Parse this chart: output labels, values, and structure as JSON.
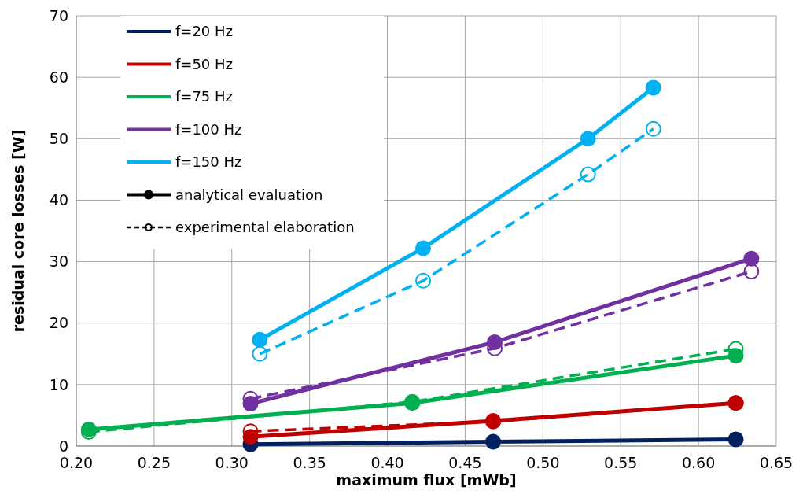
{
  "chart_data": {
    "type": "line",
    "xlabel": "maximum flux [mWb]",
    "ylabel": "residual core losses [W]",
    "xlim": [
      0.2,
      0.65
    ],
    "xticks": [
      {
        "value": 0.2,
        "label": "0.20"
      },
      {
        "value": 0.25,
        "label": "0.25"
      },
      {
        "value": 0.3,
        "label": "0.30"
      },
      {
        "value": 0.35,
        "label": "0.35"
      },
      {
        "value": 0.4,
        "label": "0.40"
      },
      {
        "value": 0.45,
        "label": "0.45"
      },
      {
        "value": 0.5,
        "label": "0.50"
      },
      {
        "value": 0.55,
        "label": "0.55"
      },
      {
        "value": 0.6,
        "label": "0.60"
      },
      {
        "value": 0.65,
        "label": "0.65"
      }
    ],
    "ylim": [
      0,
      70
    ],
    "yticks": [
      0,
      10,
      20,
      30,
      40,
      50,
      60,
      70
    ],
    "grid": true,
    "legend": "top left",
    "series": [
      {
        "color": "#c00000",
        "marker": "circle",
        "line_style": "dashed",
        "x": [
          0.312,
          0.468,
          0.624
        ],
        "values": [
          2.4,
          4.0,
          7.0
        ]
      },
      {
        "color": "#00b050",
        "marker": "circle",
        "line_style": "dashed",
        "x": [
          0.208,
          0.416,
          0.624
        ],
        "values": [
          2.3,
          7.2,
          15.8
        ]
      },
      {
        "color": "#7030a0",
        "marker": "circle",
        "line_style": "dashed",
        "x": [
          0.312,
          0.469,
          0.634
        ],
        "values": [
          7.7,
          15.9,
          28.4
        ]
      },
      {
        "color": "#00b0f0",
        "marker": "circle",
        "line_style": "dashed",
        "x": [
          0.318,
          0.423,
          0.529,
          0.571
        ],
        "values": [
          15.0,
          26.9,
          44.2,
          51.6
        ]
      },
      {
        "name": "f=20 Hz",
        "color": "#002060",
        "marker": "circle",
        "line_style": "solid",
        "x": [
          0.312,
          0.468,
          0.624
        ],
        "values": [
          0.3,
          0.7,
          1.1
        ]
      },
      {
        "name": "f=50 Hz",
        "color": "#c00000",
        "marker": "circle",
        "line_style": "solid",
        "x": [
          0.312,
          0.468,
          0.624
        ],
        "values": [
          1.5,
          4.1,
          7.0
        ]
      },
      {
        "name": "f=75 Hz",
        "color": "#00b050",
        "marker": "circle",
        "line_style": "solid",
        "x": [
          0.208,
          0.416,
          0.624
        ],
        "values": [
          2.7,
          7.0,
          14.7
        ]
      },
      {
        "name": "f=100 Hz",
        "color": "#7030a0",
        "marker": "circle",
        "line_style": "solid",
        "x": [
          0.312,
          0.469,
          0.634
        ],
        "values": [
          6.9,
          16.9,
          30.5
        ]
      },
      {
        "name": "f=150 Hz",
        "color": "#00b0f0",
        "marker": "circle",
        "line_style": "solid",
        "x": [
          0.318,
          0.423,
          0.529,
          0.571
        ],
        "values": [
          17.3,
          32.2,
          50.0,
          58.3
        ]
      },
      {
        "name": "analytical evaluation",
        "color": "#000000",
        "marker": "circle",
        "line_style": "solid"
      },
      {
        "name": "experimental elaboration",
        "color": "#000000",
        "marker": "circle",
        "line_style": "dashed"
      }
    ]
  }
}
